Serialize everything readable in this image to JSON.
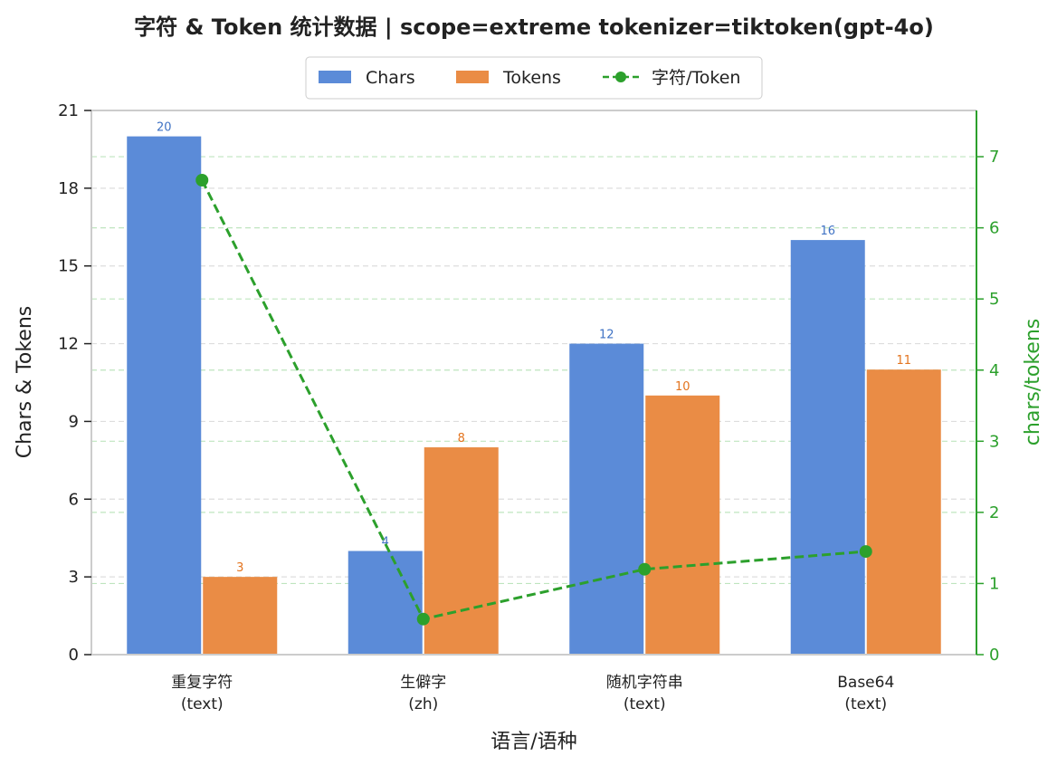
{
  "chart_data": {
    "type": "bar",
    "title": "字符 & Token 统计数据  |  scope=extreme  tokenizer=tiktoken(gpt-4o)",
    "categories": [
      [
        "重复字符",
        "(text)"
      ],
      [
        "生僻字",
        "(zh)"
      ],
      [
        "随机字符串",
        "(text)"
      ],
      [
        "Base64",
        "(text)"
      ]
    ],
    "series": [
      {
        "name": "Chars",
        "type": "bar",
        "axis": "left",
        "color": "#5b8bd8",
        "label_color": "#3f72c4",
        "values": [
          20,
          4,
          12,
          16
        ]
      },
      {
        "name": "Tokens",
        "type": "bar",
        "axis": "left",
        "color": "#ea8c45",
        "label_color": "#e3741f",
        "values": [
          3,
          8,
          10,
          11
        ]
      },
      {
        "name": "字符/Token",
        "type": "line",
        "axis": "right",
        "color": "#2ca02c",
        "style": "dashed",
        "marker": "circle",
        "values": [
          6.67,
          0.5,
          1.2,
          1.45
        ]
      }
    ],
    "xlabel": "语言/语种",
    "ylabel": "Chars & Tokens",
    "ylabel_right": "chars/tokens",
    "ylim": [
      0,
      21
    ],
    "yticks": [
      0,
      3,
      6,
      9,
      12,
      15,
      18,
      21
    ],
    "ylim_right": [
      0,
      7.65
    ],
    "yticks_right": [
      0,
      1,
      2,
      3,
      4,
      5,
      6,
      7
    ],
    "grid": true,
    "legend": "top-center"
  }
}
